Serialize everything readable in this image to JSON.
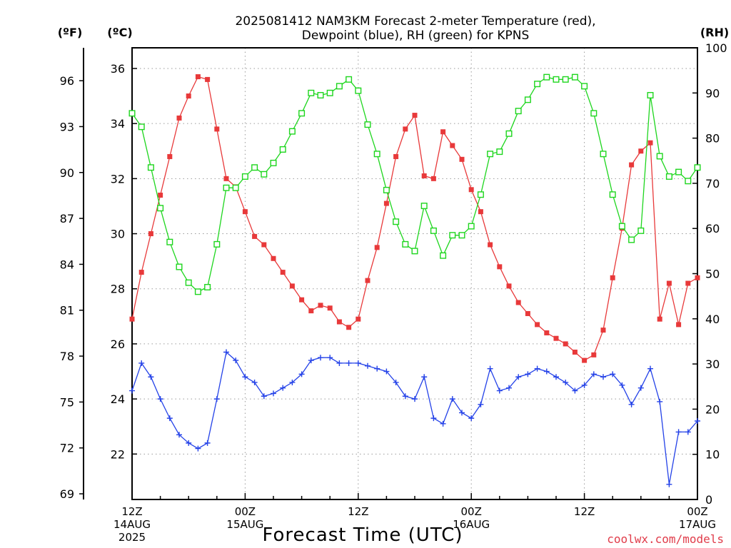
{
  "chart_data": {
    "type": "line",
    "title_line1": "2025081412 NAM3KM Forecast 2-meter Temperature (red),",
    "title_line2": "Dewpoint (blue), RH (green) for KPNS",
    "left_axis_far": {
      "label": "(ºF)",
      "ticks": [
        69,
        72,
        75,
        78,
        81,
        84,
        87,
        90,
        93,
        96
      ]
    },
    "left_axis": {
      "label": "(ºC)",
      "ticks": [
        22,
        24,
        26,
        28,
        30,
        32,
        34,
        36
      ],
      "ylim": [
        20.35,
        36.75
      ]
    },
    "right_axis": {
      "label": "(RH)",
      "ticks": [
        0,
        10,
        20,
        30,
        40,
        50,
        60,
        70,
        80,
        90,
        100
      ],
      "ylim": [
        0,
        100
      ]
    },
    "xlabel": "Forecast Time (UTC)",
    "x_ticks": [
      {
        "hour": 0,
        "line1": "12Z",
        "line2": "14AUG",
        "line3": "2025"
      },
      {
        "hour": 12,
        "line1": "00Z",
        "line2": "15AUG",
        "line3": ""
      },
      {
        "hour": 24,
        "line1": "12Z",
        "line2": "",
        "line3": ""
      },
      {
        "hour": 36,
        "line1": "00Z",
        "line2": "16AUG",
        "line3": ""
      },
      {
        "hour": 48,
        "line1": "12Z",
        "line2": "",
        "line3": ""
      },
      {
        "hour": 60,
        "line1": "00Z",
        "line2": "17AUG",
        "line3": ""
      }
    ],
    "x_range_hours": [
      0,
      60
    ],
    "grid": true,
    "series": [
      {
        "name": "Temperature",
        "axis": "C",
        "color": "#e8393a",
        "marker": "square",
        "x": [
          0,
          1,
          2,
          3,
          4,
          5,
          6,
          7,
          8,
          9,
          10,
          11,
          12,
          13,
          14,
          15,
          16,
          17,
          18,
          19,
          20,
          21,
          22,
          23,
          24,
          25,
          26,
          27,
          28,
          29,
          30,
          31,
          32,
          33,
          34,
          35,
          36,
          37,
          38,
          39,
          40,
          41,
          42,
          43,
          44,
          45,
          46,
          47,
          48,
          49,
          50,
          51,
          52,
          53,
          54,
          55,
          56,
          57,
          58,
          59,
          60
        ],
        "values": [
          26.9,
          28.6,
          30.0,
          31.4,
          32.8,
          34.2,
          35.0,
          35.7,
          35.6,
          33.8,
          32.0,
          31.7,
          30.8,
          29.9,
          29.6,
          29.1,
          28.6,
          28.1,
          27.6,
          27.2,
          27.4,
          27.3,
          26.8,
          26.6,
          26.9,
          28.3,
          29.5,
          31.1,
          32.8,
          33.8,
          34.3,
          32.1,
          32.0,
          33.7,
          33.2,
          32.7,
          31.6,
          30.8,
          29.6,
          28.8,
          28.1,
          27.5,
          27.1,
          26.7,
          26.4,
          26.2,
          26.0,
          25.7,
          25.4,
          25.6,
          26.5,
          28.4,
          30.2,
          32.5,
          33.0,
          33.3,
          26.9,
          28.2,
          26.7,
          28.2,
          28.4
        ]
      },
      {
        "name": "Dewpoint",
        "axis": "C",
        "color": "#2442e8",
        "marker": "plus",
        "x": [
          0,
          1,
          2,
          3,
          4,
          5,
          6,
          7,
          8,
          9,
          10,
          11,
          12,
          13,
          14,
          15,
          16,
          17,
          18,
          19,
          20,
          21,
          22,
          23,
          24,
          25,
          26,
          27,
          28,
          29,
          30,
          31,
          32,
          33,
          34,
          35,
          36,
          37,
          38,
          39,
          40,
          41,
          42,
          43,
          44,
          45,
          46,
          47,
          48,
          49,
          50,
          51,
          52,
          53,
          54,
          55,
          56,
          57,
          58,
          59,
          60
        ],
        "values": [
          24.3,
          25.3,
          24.8,
          24.0,
          23.3,
          22.7,
          22.4,
          22.2,
          22.4,
          24.0,
          25.7,
          25.4,
          24.8,
          24.6,
          24.1,
          24.2,
          24.4,
          24.6,
          24.9,
          25.4,
          25.5,
          25.5,
          25.3,
          25.3,
          25.3,
          25.2,
          25.1,
          25.0,
          24.6,
          24.1,
          24.0,
          24.8,
          23.3,
          23.1,
          24.0,
          23.5,
          23.3,
          23.8,
          25.1,
          24.3,
          24.4,
          24.8,
          24.9,
          25.1,
          25.0,
          24.8,
          24.6,
          24.3,
          24.5,
          24.9,
          24.8,
          24.9,
          24.5,
          23.8,
          24.4,
          25.1,
          23.9,
          20.9,
          22.8,
          22.8,
          23.2
        ]
      },
      {
        "name": "RH",
        "axis": "RH",
        "color": "#1ed61e",
        "marker": "square-open",
        "x": [
          0,
          1,
          2,
          3,
          4,
          5,
          6,
          7,
          8,
          9,
          10,
          11,
          12,
          13,
          14,
          15,
          16,
          17,
          18,
          19,
          20,
          21,
          22,
          23,
          24,
          25,
          26,
          27,
          28,
          29,
          30,
          31,
          32,
          33,
          34,
          35,
          36,
          37,
          38,
          39,
          40,
          41,
          42,
          43,
          44,
          45,
          46,
          47,
          48,
          49,
          50,
          51,
          52,
          53,
          54,
          55,
          56,
          57,
          58,
          59,
          60
        ],
        "values": [
          85.5,
          82.5,
          73.5,
          64.5,
          57.0,
          51.5,
          48.0,
          46.0,
          47.0,
          56.5,
          69.0,
          69.0,
          71.5,
          73.5,
          72.0,
          74.5,
          77.5,
          81.5,
          85.5,
          90.0,
          89.5,
          90.0,
          91.5,
          93.0,
          90.5,
          83.0,
          76.5,
          68.5,
          61.5,
          56.5,
          55.0,
          65.0,
          59.5,
          54.0,
          58.5,
          58.5,
          60.5,
          67.5,
          76.5,
          77.0,
          81.0,
          86.0,
          88.5,
          92.0,
          93.5,
          93.0,
          93.0,
          93.5,
          91.5,
          85.5,
          76.5,
          67.5,
          60.5,
          57.5,
          59.5,
          89.5,
          76.0,
          71.5,
          72.5,
          70.5,
          73.5
        ]
      }
    ]
  },
  "credit": "coolwx.com/models"
}
